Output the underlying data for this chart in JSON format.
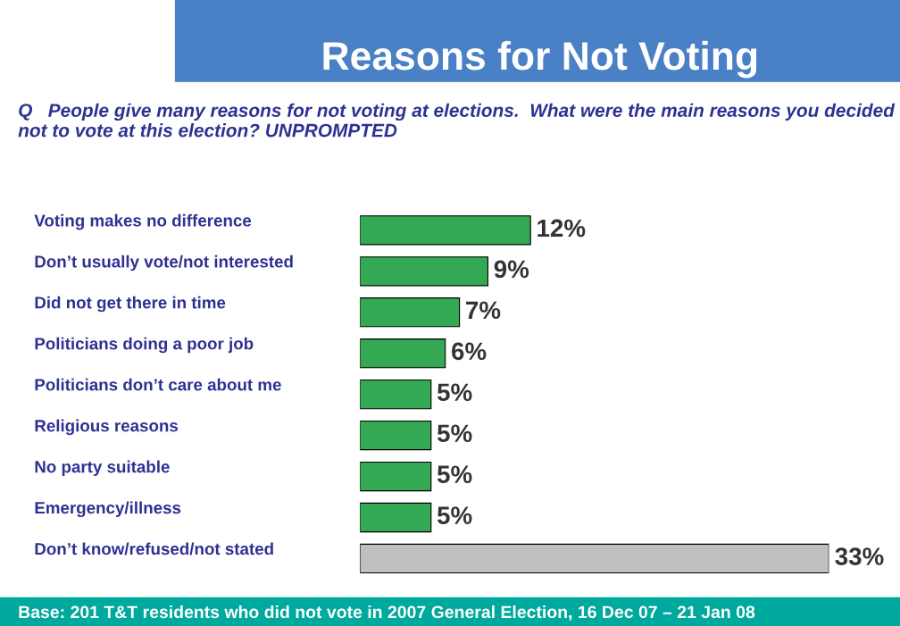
{
  "chart_data": {
    "type": "bar",
    "orientation": "horizontal",
    "title": "Reasons for Not Voting",
    "subtitle": "Q   People give many reasons for not voting at elections.  What were the main reasons you decided not to vote at this election? UNPROMPTED",
    "categories": [
      "Voting makes no difference",
      "Don’t usually vote/not interested",
      "Did not get there in time",
      "Politicians doing a poor job",
      "Politicians don’t care about me",
      "Religious reasons",
      "No party suitable",
      "Emergency/illness",
      "Don’t know/refused/not stated"
    ],
    "values": [
      12,
      9,
      7,
      6,
      5,
      5,
      5,
      5,
      33
    ],
    "colors": [
      "#34a853",
      "#34a853",
      "#34a853",
      "#34a853",
      "#34a853",
      "#34a853",
      "#34a853",
      "#34a853",
      "#c0c0c0"
    ],
    "value_labels": [
      "12%",
      "9%",
      "7%",
      "6%",
      "5%",
      "5%",
      "5%",
      "5%",
      "33%"
    ],
    "annotations": [
      "Base: 201 T&T residents who did not vote in 2007 General Election, 16 Dec 07 – 21 Jan 08"
    ]
  }
}
